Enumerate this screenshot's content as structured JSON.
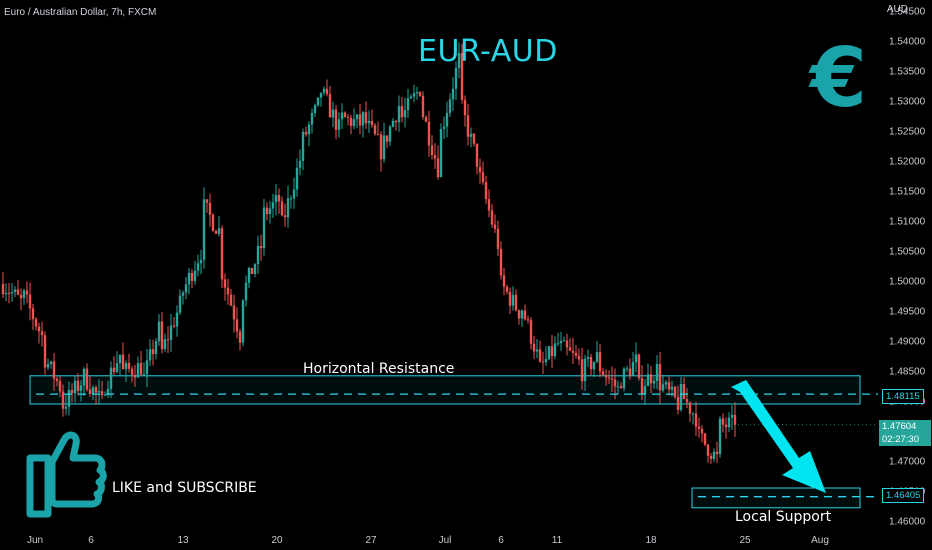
{
  "header": {
    "symbol_text": "Euro / Australian Dollar, 7h, FXCM",
    "currency_label": "AUD"
  },
  "annotations": {
    "title": "EUR-AUD",
    "resistance_label": "Horizontal Resistance",
    "support_label": "Local Support",
    "cta": "LIKE and SUBSCRIBE",
    "euro_symbol": "€"
  },
  "price_tags": {
    "resistance": "1.48115",
    "last_price": "1.47604",
    "countdown": "02:27:30",
    "support": "1.46405"
  },
  "colors": {
    "up": "#26a69a",
    "down": "#ef5350",
    "accent": "#29d5e6",
    "arrow": "#00e5ef"
  },
  "chart_data": {
    "type": "candlestick",
    "title": "EUR-AUD",
    "ylim": [
      1.4575,
      1.5455
    ],
    "y_ticks": [
      "1.54500",
      "1.54000",
      "1.53500",
      "1.53000",
      "1.52500",
      "1.52000",
      "1.51500",
      "1.51000",
      "1.50500",
      "1.50000",
      "1.49500",
      "1.49000",
      "1.48500",
      "1.48000",
      "1.47500",
      "1.47000",
      "1.46500",
      "1.46000"
    ],
    "x_ticks": [
      "Jun",
      "6",
      "13",
      "20",
      "27",
      "Jul",
      "6",
      "11",
      "18",
      "25",
      "Aug"
    ],
    "resistance_zone": [
      1.4795,
      1.4842
    ],
    "resistance_level": 1.48115,
    "support_zone": [
      1.4622,
      1.4655
    ],
    "support_level": 1.46405,
    "last_price": 1.47604,
    "close_path": [
      [
        1.4995,
        1.4962
      ],
      [
        1.4978,
        1.4905
      ],
      [
        1.4878,
        1.4815
      ],
      [
        1.4792,
        1.4835
      ],
      [
        1.4845,
        1.4795
      ],
      [
        1.4818,
        1.4885
      ],
      [
        1.4848,
        1.4858
      ],
      [
        1.4828,
        1.4935
      ],
      [
        1.4882,
        1.4968
      ],
      [
        1.4978,
        1.5052
      ],
      [
        1.5128,
        1.5078
      ],
      [
        1.5018,
        1.4902
      ],
      [
        1.4972,
        1.5058
      ],
      [
        1.5108,
        1.5138
      ],
      [
        1.5088,
        1.5208
      ],
      [
        1.5228,
        1.5302
      ],
      [
        1.5318,
        1.5248
      ],
      [
        1.5272,
        1.5262
      ],
      [
        1.5278,
        1.5222
      ],
      [
        1.5215,
        1.5298
      ],
      [
        1.5268,
        1.5322
      ],
      [
        1.5295,
        1.5178
      ],
      [
        1.5242,
        1.5375
      ],
      [
        1.5298,
        1.5185
      ],
      [
        1.5172,
        1.5052
      ],
      [
        1.4998,
        1.4948
      ],
      [
        1.4968,
        1.4865
      ],
      [
        1.4852,
        1.4898
      ],
      [
        1.4892,
        1.4865
      ],
      [
        1.4845,
        1.4875
      ],
      [
        1.4858,
        1.4818
      ],
      [
        1.4832,
        1.4872
      ],
      [
        1.4822,
        1.4855
      ],
      [
        1.4832,
        1.4795
      ],
      [
        1.4818,
        1.4768
      ],
      [
        1.4742,
        1.4702
      ],
      [
        1.4758,
        1.4762
      ]
    ]
  }
}
